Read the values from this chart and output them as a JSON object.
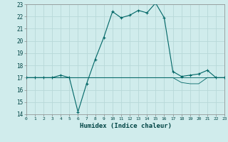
{
  "xlabel": "Humidex (Indice chaleur)",
  "background_color": "#d0ecec",
  "grid_color": "#b8d8d8",
  "line_color": "#006666",
  "xlim": [
    0,
    23
  ],
  "ylim": [
    14,
    23
  ],
  "x_ticks": [
    0,
    1,
    2,
    3,
    4,
    5,
    6,
    7,
    8,
    9,
    10,
    11,
    12,
    13,
    14,
    15,
    16,
    17,
    18,
    19,
    20,
    21,
    22,
    23
  ],
  "y_ticks": [
    14,
    15,
    16,
    17,
    18,
    19,
    20,
    21,
    22,
    23
  ],
  "series1_x": [
    0,
    1,
    2,
    3,
    4,
    5,
    6,
    7,
    8,
    9,
    10,
    11,
    12,
    13,
    14,
    15,
    16,
    17,
    18,
    19,
    20,
    21,
    22,
    23
  ],
  "series1_y": [
    17,
    17,
    17,
    17,
    17.2,
    17,
    14.2,
    16.5,
    18.5,
    20.3,
    22.4,
    21.9,
    22.1,
    22.5,
    22.3,
    23.1,
    21.9,
    17.5,
    17.1,
    17.2,
    17.3,
    17.6,
    17.0,
    17.0
  ],
  "series2_x": [
    0,
    1,
    2,
    3,
    4,
    5,
    6,
    7,
    8,
    9,
    10,
    11,
    12,
    13,
    14,
    15,
    16,
    17,
    18,
    19,
    20,
    21,
    22,
    23
  ],
  "series2_y": [
    17,
    17,
    17,
    17,
    17,
    17,
    17,
    17,
    17,
    17,
    17,
    17,
    17,
    17,
    17,
    17,
    17,
    17,
    16.6,
    16.5,
    16.5,
    17,
    17,
    17
  ],
  "series3_x": [
    0,
    1,
    2,
    3,
    4,
    5,
    6,
    7,
    8,
    9,
    10,
    11,
    12,
    13,
    14,
    15,
    16,
    17,
    18,
    19,
    20,
    21,
    22,
    23
  ],
  "series3_y": [
    17,
    17,
    17,
    17,
    17,
    17,
    17,
    17,
    17,
    17,
    17,
    17,
    17,
    17,
    17,
    17,
    17,
    17,
    17,
    17,
    17,
    17,
    17,
    17
  ]
}
